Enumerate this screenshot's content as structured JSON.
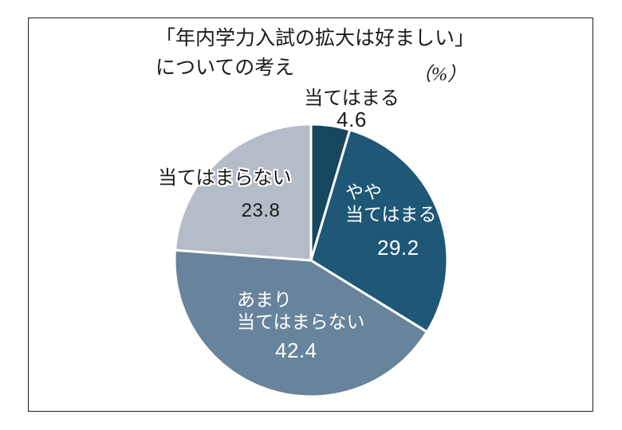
{
  "chart_data": {
    "type": "pie",
    "title": "「年内学力入試の拡大は好ましい」についての考え",
    "title_lines": [
      "「年内学力入試の拡大は好ましい」",
      "についての考え"
    ],
    "unit_label": "（%）",
    "start_angle_deg": 0,
    "direction": "clockwise",
    "divider_color": "#ffffff",
    "background_color": "#ffffff",
    "frame_border_color": "#1f1f1f",
    "legend_position": "none",
    "slices": [
      {
        "label": "当てはまる",
        "label_lines": [
          "当てはまる"
        ],
        "value": 4.6,
        "color": "#17465f",
        "label_color": "#1a1a1a",
        "label_placement": "outside-top"
      },
      {
        "label": "やや当てはまる",
        "label_lines": [
          "やや",
          "当てはまる"
        ],
        "value": 29.2,
        "color": "#1f5876",
        "label_color": "#ffffff",
        "label_placement": "inside"
      },
      {
        "label": "あまり当てはまらない",
        "label_lines": [
          "あまり",
          "当てはまらない"
        ],
        "value": 42.4,
        "color": "#68849c",
        "label_color": "#ffffff",
        "label_placement": "inside"
      },
      {
        "label": "当てはまらない",
        "label_lines": [
          "当てはまらない"
        ],
        "value": 23.8,
        "color": "#b4bcc7",
        "label_color": "#1a1a1a",
        "label_placement": "inside-left"
      }
    ]
  }
}
